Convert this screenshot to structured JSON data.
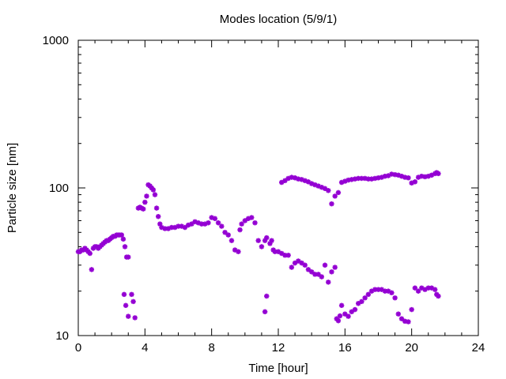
{
  "chart_data": {
    "type": "scatter",
    "title": "Modes location (5/9/1)",
    "xlabel": "Time [hour]",
    "ylabel": "Particle size [nm]",
    "xlim": [
      0,
      24
    ],
    "ylim": [
      10,
      1000
    ],
    "yscale": "log",
    "xticks": [
      0,
      4,
      8,
      12,
      16,
      20,
      24
    ],
    "xtick_labels": [
      "0",
      "4",
      "8",
      "12",
      "16",
      "20",
      "24"
    ],
    "yticks": [
      10,
      100,
      1000
    ],
    "ytick_labels": [
      "10",
      "100",
      "1000"
    ],
    "grid": false,
    "legend": "none",
    "marker": "asterisk",
    "colors": {
      "series": "#9400d3",
      "axis": "#000000",
      "background": "#ffffff"
    },
    "series": [
      {
        "points": [
          [
            0.0,
            37
          ],
          [
            0.1,
            37
          ],
          [
            0.2,
            38
          ],
          [
            0.3,
            38
          ],
          [
            0.4,
            39
          ],
          [
            0.5,
            38
          ],
          [
            0.6,
            37
          ],
          [
            0.7,
            36
          ],
          [
            0.8,
            28
          ],
          [
            0.9,
            39
          ],
          [
            1.0,
            40
          ],
          [
            1.1,
            40
          ],
          [
            1.2,
            39
          ],
          [
            1.3,
            40
          ],
          [
            1.4,
            41
          ],
          [
            1.5,
            42
          ],
          [
            1.6,
            43
          ],
          [
            1.7,
            44
          ],
          [
            1.8,
            44
          ],
          [
            1.9,
            45
          ],
          [
            2.0,
            46
          ],
          [
            2.1,
            47
          ],
          [
            2.2,
            47
          ],
          [
            2.3,
            48
          ],
          [
            2.4,
            48
          ],
          [
            2.5,
            48
          ],
          [
            2.6,
            48
          ],
          [
            2.7,
            45
          ],
          [
            2.8,
            40
          ],
          [
            2.9,
            34
          ],
          [
            3.0,
            34
          ],
          [
            2.75,
            19
          ],
          [
            2.85,
            16
          ],
          [
            3.0,
            13.5
          ],
          [
            3.2,
            19
          ],
          [
            3.3,
            17
          ],
          [
            3.4,
            13.2
          ],
          [
            3.6,
            73
          ],
          [
            3.7,
            74
          ],
          [
            3.8,
            73
          ],
          [
            3.9,
            72
          ],
          [
            4.0,
            80
          ],
          [
            4.1,
            88
          ],
          [
            4.2,
            105
          ],
          [
            4.3,
            103
          ],
          [
            4.4,
            100
          ],
          [
            4.5,
            97
          ],
          [
            4.6,
            90
          ],
          [
            4.7,
            73
          ],
          [
            4.8,
            64
          ],
          [
            4.9,
            57
          ],
          [
            5.0,
            54
          ],
          [
            5.2,
            53
          ],
          [
            5.4,
            53
          ],
          [
            5.6,
            54
          ],
          [
            5.8,
            54
          ],
          [
            6.0,
            55
          ],
          [
            6.2,
            55
          ],
          [
            6.4,
            54
          ],
          [
            6.6,
            56
          ],
          [
            6.8,
            57
          ],
          [
            7.0,
            59
          ],
          [
            7.2,
            58
          ],
          [
            7.4,
            57
          ],
          [
            7.6,
            57
          ],
          [
            7.8,
            58
          ],
          [
            8.0,
            63
          ],
          [
            8.2,
            62
          ],
          [
            8.4,
            58
          ],
          [
            8.6,
            55
          ],
          [
            8.8,
            50
          ],
          [
            9.0,
            48
          ],
          [
            9.2,
            44
          ],
          [
            9.4,
            38
          ],
          [
            9.6,
            37
          ],
          [
            9.7,
            52
          ],
          [
            9.8,
            57
          ],
          [
            10.0,
            60
          ],
          [
            10.2,
            62
          ],
          [
            10.4,
            63
          ],
          [
            10.6,
            58
          ],
          [
            10.8,
            44
          ],
          [
            11.0,
            40
          ],
          [
            11.2,
            44
          ],
          [
            11.3,
            46
          ],
          [
            11.5,
            42
          ],
          [
            11.7,
            38
          ],
          [
            11.6,
            44
          ],
          [
            11.8,
            37
          ],
          [
            12.0,
            37
          ],
          [
            12.2,
            36
          ],
          [
            12.4,
            35
          ],
          [
            12.6,
            35
          ],
          [
            12.8,
            29
          ],
          [
            13.0,
            31
          ],
          [
            13.2,
            32
          ],
          [
            13.4,
            31
          ],
          [
            13.6,
            30
          ],
          [
            13.8,
            28
          ],
          [
            14.0,
            27
          ],
          [
            14.2,
            26
          ],
          [
            14.4,
            26
          ],
          [
            14.6,
            25
          ],
          [
            14.8,
            30
          ],
          [
            15.0,
            23
          ],
          [
            15.2,
            27
          ],
          [
            15.4,
            29
          ],
          [
            11.2,
            14.5
          ],
          [
            11.3,
            18.5
          ],
          [
            12.2,
            109
          ],
          [
            12.4,
            112
          ],
          [
            12.6,
            116
          ],
          [
            12.8,
            118
          ],
          [
            13.0,
            117
          ],
          [
            13.2,
            115
          ],
          [
            13.4,
            114
          ],
          [
            13.6,
            112
          ],
          [
            13.8,
            110
          ],
          [
            14.0,
            107
          ],
          [
            14.2,
            105
          ],
          [
            14.4,
            103
          ],
          [
            14.6,
            101
          ],
          [
            14.8,
            99
          ],
          [
            15.0,
            96
          ],
          [
            15.2,
            78
          ],
          [
            15.4,
            88
          ],
          [
            15.6,
            93
          ],
          [
            15.8,
            109
          ],
          [
            16.0,
            111
          ],
          [
            16.2,
            113
          ],
          [
            16.4,
            114
          ],
          [
            16.6,
            115
          ],
          [
            16.8,
            116
          ],
          [
            17.0,
            116
          ],
          [
            17.2,
            116
          ],
          [
            17.4,
            115
          ],
          [
            17.6,
            115
          ],
          [
            17.8,
            116
          ],
          [
            18.0,
            117
          ],
          [
            18.2,
            118
          ],
          [
            18.4,
            120
          ],
          [
            18.6,
            121
          ],
          [
            18.8,
            124
          ],
          [
            19.0,
            123
          ],
          [
            19.2,
            122
          ],
          [
            19.4,
            120
          ],
          [
            19.6,
            118
          ],
          [
            19.8,
            117
          ],
          [
            20.0,
            108
          ],
          [
            20.2,
            110
          ],
          [
            20.4,
            118
          ],
          [
            20.6,
            120
          ],
          [
            20.8,
            119
          ],
          [
            21.0,
            120
          ],
          [
            21.2,
            122
          ],
          [
            21.4,
            125
          ],
          [
            21.5,
            127
          ],
          [
            21.6,
            125
          ],
          [
            15.5,
            13
          ],
          [
            15.6,
            12.6
          ],
          [
            15.7,
            13.6
          ],
          [
            15.8,
            16
          ],
          [
            16.0,
            14
          ],
          [
            16.2,
            13.5
          ],
          [
            16.4,
            14.5
          ],
          [
            16.6,
            15
          ],
          [
            16.8,
            16.5
          ],
          [
            17.0,
            17
          ],
          [
            17.2,
            18
          ],
          [
            17.4,
            19
          ],
          [
            17.6,
            20
          ],
          [
            17.8,
            20.5
          ],
          [
            18.0,
            20.5
          ],
          [
            18.2,
            20.5
          ],
          [
            18.4,
            20
          ],
          [
            18.6,
            20
          ],
          [
            18.8,
            19.5
          ],
          [
            19.0,
            18
          ],
          [
            19.2,
            14
          ],
          [
            19.4,
            13
          ],
          [
            19.6,
            12.5
          ],
          [
            19.8,
            12.4
          ],
          [
            20.0,
            15
          ],
          [
            20.2,
            21
          ],
          [
            20.4,
            20
          ],
          [
            20.6,
            21
          ],
          [
            20.8,
            20.5
          ],
          [
            21.0,
            21
          ],
          [
            21.2,
            21
          ],
          [
            21.4,
            20.5
          ],
          [
            21.5,
            19
          ],
          [
            21.6,
            18.5
          ]
        ]
      }
    ]
  }
}
